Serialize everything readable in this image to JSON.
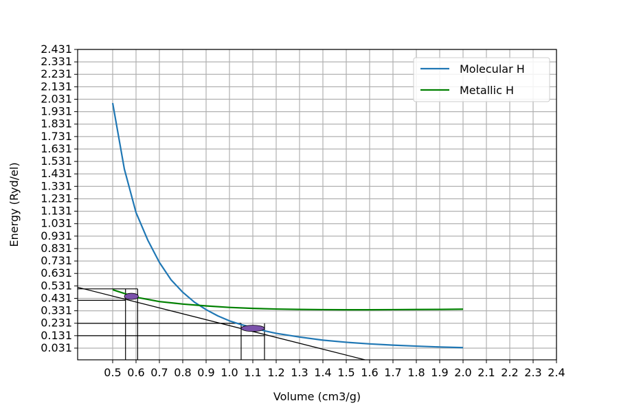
{
  "chart_data": {
    "type": "line",
    "xlabel": "Volume (cm3/g)",
    "ylabel": "Energy (Ryd/el)",
    "xlim": [
      0.35,
      2.4
    ],
    "ylim": [
      -0.063,
      2.431
    ],
    "grid": true,
    "legend_position": "top-right",
    "x_ticks": [
      0.5,
      0.6,
      0.7,
      0.8,
      0.9,
      1.0,
      1.1,
      1.2,
      1.3,
      1.4,
      1.5,
      1.6,
      1.7,
      1.8,
      1.9,
      2.0,
      2.1,
      2.2,
      2.3,
      2.4
    ],
    "x_tick_labels": [
      "0.5",
      "0.6",
      "0.7",
      "0.8",
      "0.9",
      "1.0",
      "1.1",
      "1.2",
      "1.3",
      "1.4",
      "1.5",
      "1.6",
      "1.7",
      "1.8",
      "1.9",
      "2.0",
      "2.1",
      "2.2",
      "2.3",
      "2.4"
    ],
    "y_ticks": [
      0.031,
      0.131,
      0.231,
      0.331,
      0.431,
      0.531,
      0.631,
      0.731,
      0.831,
      0.931,
      1.031,
      1.131,
      1.231,
      1.331,
      1.431,
      1.531,
      1.631,
      1.731,
      1.831,
      1.931,
      2.031,
      2.131,
      2.231,
      2.331,
      2.431
    ],
    "y_tick_labels": [
      "0.031",
      "0.131",
      "0.231",
      "0.331",
      "0.431",
      "0.531",
      "0.631",
      "0.731",
      "0.831",
      "0.931",
      "1.031",
      "1.131",
      "1.231",
      "1.331",
      "1.431",
      "1.531",
      "1.631",
      "1.731",
      "1.831",
      "1.931",
      "2.031",
      "2.131",
      "2.231",
      "2.331",
      "2.431"
    ],
    "series": [
      {
        "name": "Molecular H",
        "color": "#1f77b4",
        "x": [
          0.5,
          0.55,
          0.6,
          0.65,
          0.7,
          0.75,
          0.8,
          0.85,
          0.9,
          0.95,
          1.0,
          1.05,
          1.1,
          1.15,
          1.2,
          1.3,
          1.4,
          1.5,
          1.6,
          1.7,
          1.8,
          1.9,
          2.0
        ],
        "y": [
          2.0,
          1.47,
          1.12,
          0.9,
          0.72,
          0.58,
          0.48,
          0.4,
          0.34,
          0.29,
          0.25,
          0.22,
          0.195,
          0.17,
          0.15,
          0.12,
          0.095,
          0.078,
          0.065,
          0.055,
          0.047,
          0.04,
          0.035
        ]
      },
      {
        "name": "Metallic H",
        "color": "#008000",
        "x": [
          0.5,
          0.6,
          0.7,
          0.8,
          0.9,
          1.0,
          1.1,
          1.2,
          1.3,
          1.4,
          1.5,
          1.6,
          1.7,
          1.8,
          1.9,
          2.0
        ],
        "y": [
          0.5,
          0.44,
          0.405,
          0.385,
          0.37,
          0.358,
          0.35,
          0.345,
          0.342,
          0.34,
          0.339,
          0.339,
          0.34,
          0.341,
          0.342,
          0.344
        ]
      }
    ],
    "annotations": {
      "tangent_line": {
        "x": [
          0.35,
          1.58
        ],
        "y": [
          0.52,
          -0.063
        ]
      },
      "ellipses": [
        {
          "cx": 0.58,
          "cy": 0.447,
          "rx": 0.03,
          "ry": 0.025,
          "color": "#7b52ab"
        },
        {
          "cx": 1.1,
          "cy": 0.19,
          "rx": 0.05,
          "ry": 0.025,
          "color": "#7b52ab"
        }
      ],
      "guide_lines": [
        {
          "x": [
            0.35,
            0.607
          ],
          "y": [
            0.507,
            0.507
          ]
        },
        {
          "x": [
            0.35,
            0.555
          ],
          "y": [
            0.415,
            0.415
          ]
        },
        {
          "x": [
            0.555,
            0.555
          ],
          "y": [
            -0.063,
            0.507
          ]
        },
        {
          "x": [
            0.607,
            0.607
          ],
          "y": [
            -0.063,
            0.507
          ]
        },
        {
          "x": [
            0.35,
            1.05
          ],
          "y": [
            0.23,
            0.23
          ]
        },
        {
          "x": [
            0.35,
            1.15
          ],
          "y": [
            0.131,
            0.131
          ]
        },
        {
          "x": [
            1.05,
            1.05
          ],
          "y": [
            -0.063,
            0.23
          ]
        },
        {
          "x": [
            1.15,
            1.15
          ],
          "y": [
            -0.063,
            0.23
          ]
        }
      ]
    }
  }
}
